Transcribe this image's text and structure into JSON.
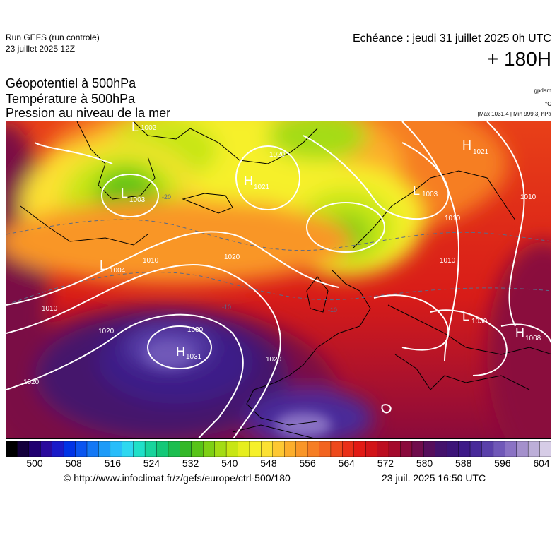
{
  "header": {
    "run_name": "Run GEFS (run controle)",
    "run_date": "23 juillet 2025 12Z",
    "echeance": "Echéance : jeudi 31 juillet 2025 0h UTC",
    "lead_time": "+ 180H"
  },
  "titles": {
    "line1": "Géopotentiel à 500hPa",
    "line2": "Température à 500hPa",
    "line3": "Pression au niveau de la mer"
  },
  "units": {
    "geopotential": "gpdam",
    "temperature": "°C",
    "pressure_extremes": "[Max 1031.4 | Min 999.3] hPa"
  },
  "map": {
    "pressure_centers": [
      {
        "symbol": "H",
        "value": "1031"
      },
      {
        "symbol": "L",
        "value": "1003"
      },
      {
        "symbol": "L",
        "value": "1004"
      },
      {
        "symbol": "H",
        "value": "1021"
      },
      {
        "symbol": "L",
        "value": "1003"
      },
      {
        "symbol": "H",
        "value": "1021"
      },
      {
        "symbol": "L",
        "value": "1002"
      },
      {
        "symbol": "L",
        "value": "1030"
      },
      {
        "symbol": "H",
        "value": "1008"
      }
    ],
    "isobar_labels": [
      "1010",
      "1010",
      "1020",
      "1020",
      "1020",
      "1030",
      "1020",
      "1020",
      "1010",
      "1010",
      "1010"
    ],
    "temperature_labels": [
      "-10",
      "-10",
      "-20"
    ]
  },
  "colorbar": {
    "ticks": [
      "500",
      "508",
      "516",
      "524",
      "532",
      "540",
      "548",
      "556",
      "564",
      "572",
      "580",
      "588",
      "596",
      "604"
    ],
    "colors": [
      "#000000",
      "#14003c",
      "#200070",
      "#2a0a9c",
      "#1a1ac8",
      "#0033e6",
      "#0a55f0",
      "#1478f5",
      "#1e9bf8",
      "#28bdfa",
      "#2ed8f0",
      "#20e0c8",
      "#18d49c",
      "#14c878",
      "#1cbe50",
      "#34b828",
      "#58c418",
      "#7ed014",
      "#a4dc14",
      "#c8e614",
      "#e6ee1e",
      "#f6f02a",
      "#fce132",
      "#fec832",
      "#fcae2c",
      "#f99628",
      "#f67e24",
      "#f26420",
      "#ee4a1c",
      "#ea3018",
      "#e21a14",
      "#d21418",
      "#bc0e20",
      "#a40a2c",
      "#8a0a3c",
      "#700c4c",
      "#560e5c",
      "#44126c",
      "#3c1478",
      "#3e1a88",
      "#482a9a",
      "#5a40aa",
      "#7058b8",
      "#8a72c4",
      "#a490cc",
      "#bcaed8",
      "#d6cce6"
    ],
    "domain": [
      500,
      604
    ]
  },
  "footer": {
    "copyright": "© http://www.infoclimat.fr/z/gefs/europe/ctrl-500/180",
    "generated": "23 juil. 2025 16:50 UTC"
  }
}
